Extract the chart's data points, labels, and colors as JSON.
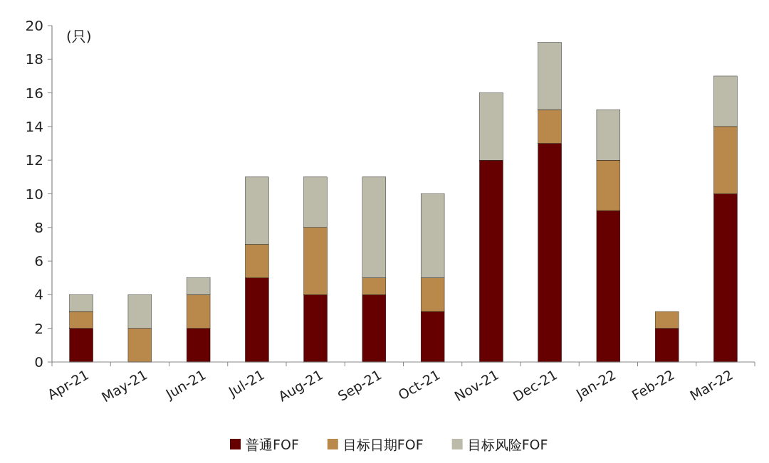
{
  "chart_data": {
    "type": "bar",
    "stacked": true,
    "ylabel": "(只)",
    "categories": [
      "Apr-21",
      "May-21",
      "Jun-21",
      "Jul-21",
      "Aug-21",
      "Sep-21",
      "Oct-21",
      "Nov-21",
      "Dec-21",
      "Jan-22",
      "Feb-22",
      "Mar-22"
    ],
    "series": [
      {
        "name": "普通FOF",
        "color": "#660000",
        "values": [
          2,
          0,
          2,
          5,
          4,
          4,
          3,
          12,
          13,
          9,
          2,
          10
        ]
      },
      {
        "name": "目标日期FOF",
        "color": "#b8894a",
        "values": [
          1,
          2,
          2,
          2,
          4,
          1,
          2,
          0,
          2,
          3,
          1,
          4
        ]
      },
      {
        "name": "目标风险FOF",
        "color": "#bcbaa8",
        "values": [
          1,
          2,
          1,
          4,
          3,
          6,
          5,
          4,
          4,
          3,
          0,
          3
        ]
      }
    ],
    "ylim": [
      0,
      20
    ],
    "yticks": [
      0,
      2,
      4,
      6,
      8,
      10,
      12,
      14,
      16,
      18,
      20
    ],
    "grid": false,
    "legend": "bottom"
  }
}
